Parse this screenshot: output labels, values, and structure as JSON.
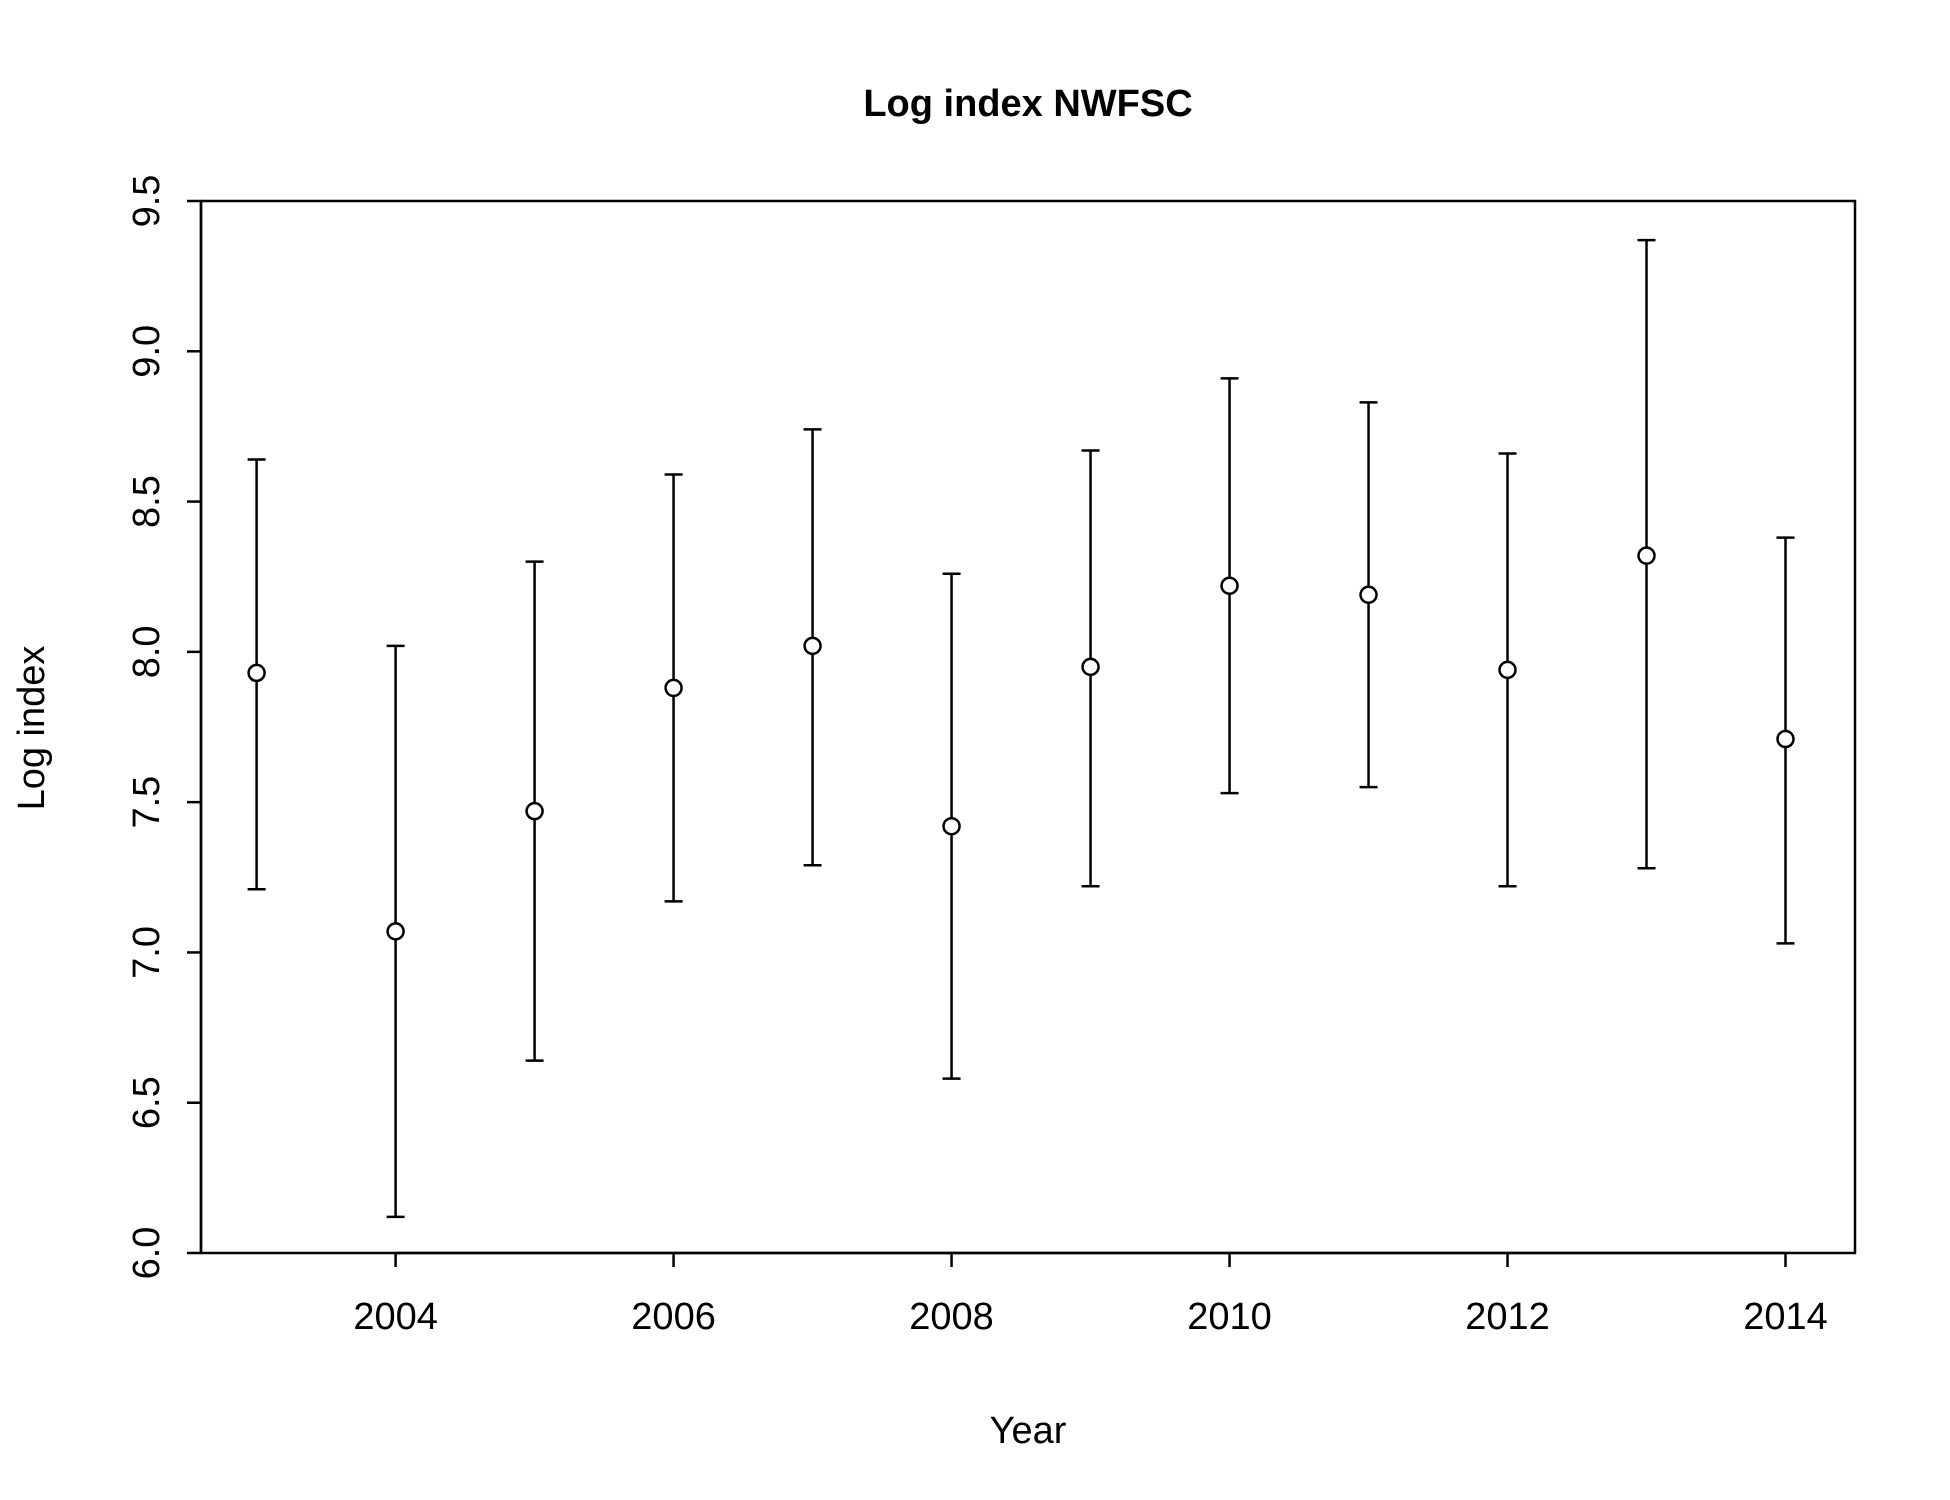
{
  "chart_data": {
    "type": "scatter",
    "title": "Log index NWFSC",
    "xlabel": "Year",
    "ylabel": "Log index",
    "xlim": [
      2002.6,
      2014.5
    ],
    "ylim": [
      6.0,
      9.5
    ],
    "xticks": [
      2004,
      2006,
      2008,
      2010,
      2012,
      2014
    ],
    "yticks": [
      6.0,
      6.5,
      7.0,
      7.5,
      8.0,
      8.5,
      9.0,
      9.5
    ],
    "grid": false,
    "legend": "none",
    "series": [
      {
        "x": [
          2003,
          2004,
          2005,
          2006,
          2007,
          2008,
          2009,
          2010,
          2011,
          2012,
          2013,
          2014
        ],
        "y": [
          7.93,
          7.07,
          7.47,
          7.88,
          8.02,
          7.42,
          7.95,
          8.22,
          8.19,
          7.94,
          8.32,
          7.71
        ],
        "lower": [
          7.21,
          6.12,
          6.64,
          7.17,
          7.29,
          6.58,
          7.22,
          7.53,
          7.55,
          7.22,
          7.28,
          7.03
        ],
        "upper": [
          8.64,
          8.02,
          8.3,
          8.59,
          8.74,
          8.26,
          8.67,
          8.91,
          8.83,
          8.66,
          9.37,
          8.38
        ]
      }
    ]
  }
}
